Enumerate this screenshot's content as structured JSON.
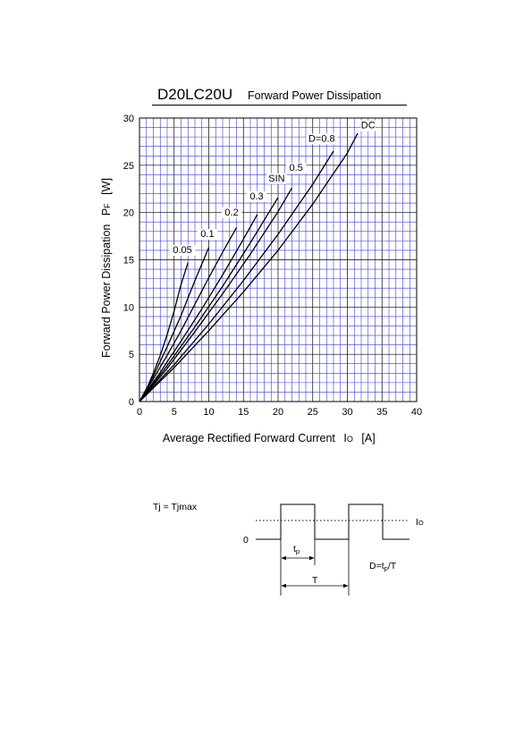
{
  "chart_data": {
    "type": "line",
    "title": "D20LC20U",
    "subtitle": "Forward Power Dissipation",
    "xlabel": "Average Rectified Forward Current",
    "xlabel_symbol": "I",
    "xlabel_sub": "O",
    "xlabel_unit": "[A]",
    "ylabel": "Forward Power Dissipation",
    "ylabel_symbol": "P",
    "ylabel_sub": "F",
    "ylabel_unit": "[W]",
    "xlim": [
      0,
      40
    ],
    "ylim": [
      0,
      30
    ],
    "xticks": [
      0,
      5,
      10,
      15,
      20,
      25,
      30,
      35,
      40
    ],
    "yticks": [
      0,
      5,
      10,
      15,
      20,
      25,
      30
    ],
    "grid": true,
    "grid_color": "#3a3ad8",
    "series": [
      {
        "name": "0.05",
        "x": [
          0,
          1,
          2,
          3,
          4,
          5,
          6,
          7
        ],
        "y": [
          0,
          1.3,
          3.0,
          4.9,
          7.1,
          9.6,
          12.4,
          14.7
        ]
      },
      {
        "name": "0.1",
        "x": [
          0,
          2,
          4,
          6,
          8,
          10
        ],
        "y": [
          0,
          2.7,
          5.8,
          9.1,
          12.8,
          16.3
        ]
      },
      {
        "name": "0.2",
        "x": [
          0,
          2,
          4,
          6,
          8,
          10,
          12,
          14
        ],
        "y": [
          0,
          2.4,
          4.9,
          7.5,
          10.3,
          13.1,
          15.8,
          18.4
        ]
      },
      {
        "name": "0.3",
        "x": [
          0,
          3,
          6,
          9,
          12,
          15,
          17
        ],
        "y": [
          0,
          3.1,
          6.4,
          9.8,
          13.4,
          17.2,
          19.8
        ]
      },
      {
        "name": "SIN",
        "x": [
          0,
          4,
          8,
          12,
          16,
          20
        ],
        "y": [
          0,
          3.8,
          7.9,
          12.2,
          16.8,
          21.6
        ]
      },
      {
        "name": "0.5",
        "x": [
          0,
          4,
          8,
          12,
          16,
          20,
          22
        ],
        "y": [
          0,
          3.5,
          7.4,
          11.4,
          15.6,
          20.1,
          22.6
        ]
      },
      {
        "name": "D=0.8",
        "x": [
          0,
          5,
          10,
          15,
          20,
          25,
          28
        ],
        "y": [
          0,
          3.9,
          8.2,
          12.8,
          17.7,
          23.0,
          26.5
        ]
      },
      {
        "name": "DC",
        "x": [
          0,
          5,
          10,
          15,
          20,
          25,
          30,
          31.5
        ],
        "y": [
          0,
          3.6,
          7.5,
          11.6,
          16.0,
          20.9,
          26.3,
          28.4
        ]
      }
    ],
    "curve_labels": [
      {
        "text": "0.05",
        "x": 6.2,
        "y": 15.7
      },
      {
        "text": "0.1",
        "x": 9.8,
        "y": 17.4
      },
      {
        "text": "0.2",
        "x": 13.3,
        "y": 19.7
      },
      {
        "text": "0.3",
        "x": 16.9,
        "y": 21.4
      },
      {
        "text": "SIN",
        "x": 19.8,
        "y": 23.3
      },
      {
        "text": "0.5",
        "x": 22.6,
        "y": 24.4
      },
      {
        "text": "D=0.8",
        "x": 26.3,
        "y": 27.5
      },
      {
        "text": "DC",
        "x": 33.0,
        "y": 28.9
      }
    ]
  },
  "waveform": {
    "condition": "Tj = Tjmax",
    "zero_label": "0",
    "current_label": "I",
    "current_sub": "O",
    "tp_label": "t",
    "tp_sub": "p",
    "period_label": "T",
    "duty_label_prefix": "D=t",
    "duty_label_sub": "p",
    "duty_label_suffix": "/T"
  }
}
